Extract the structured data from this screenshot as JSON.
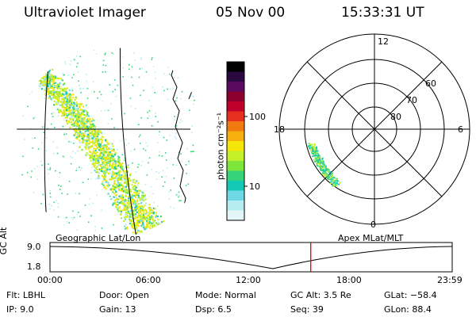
{
  "header": {
    "title": "Ultraviolet Imager",
    "date": "05 Nov 00",
    "time": "15:33:31 UT"
  },
  "colorbar": {
    "unit": "photon cm⁻²s⁻¹",
    "ticks": [
      "100",
      "10"
    ],
    "colors": [
      "#000000",
      "#2a0840",
      "#5a0a60",
      "#8c0030",
      "#c0002a",
      "#e83020",
      "#f07a10",
      "#f6b010",
      "#f4e60a",
      "#c4f02a",
      "#7ee63a",
      "#36d47a",
      "#14c8b6",
      "#6fd8e4",
      "#b6ecf2",
      "#e2f6f8"
    ]
  },
  "left_panel": {
    "label": "Geographic Lat/Lon"
  },
  "right_panel": {
    "label": "Apex MLat/MLT",
    "mlt_labels": {
      "top": "12",
      "bottom": "0",
      "left": "18",
      "right": "6"
    },
    "lat_labels": [
      "60",
      "70",
      "80"
    ]
  },
  "timeline": {
    "ylabel": "GC Alt",
    "yticks": [
      "9.0",
      "1.8"
    ],
    "xticks": [
      "00:00",
      "06:00",
      "12:00",
      "18:00",
      "23:59"
    ],
    "marker_time": "15:33",
    "marker_color": "#e00000"
  },
  "info": {
    "flt": "Flt: LBHL",
    "ip": "IP:  9.0",
    "door": "Door: Open",
    "gain": "Gain: 13",
    "mode": "Mode: Normal",
    "dsp": "Dsp:     6.5",
    "gcalt": "GC Alt: 3.5 Re",
    "seq": "Seq: 39",
    "glat": "GLat: −58.4",
    "glon": "GLon:  88.4"
  }
}
